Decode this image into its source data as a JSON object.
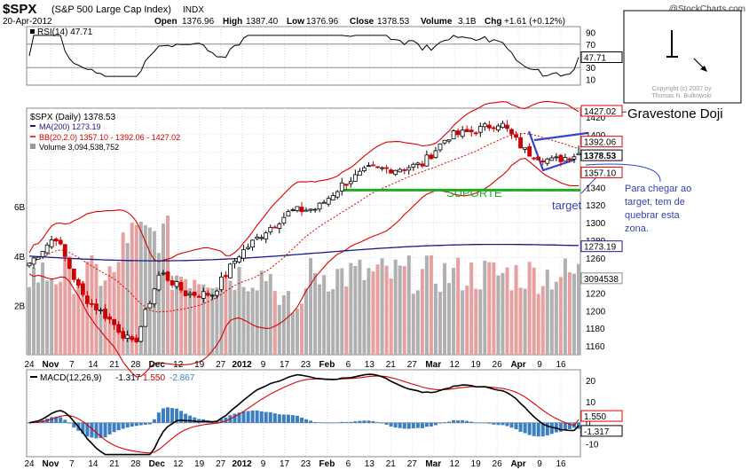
{
  "header": {
    "ticker": "$SPX",
    "name": "(S&P 500 Large Cap Index)",
    "exchange": "INDX",
    "brand": "@StockCharts.com",
    "date": "20-Apr-2012",
    "open_label": "Open",
    "open": "1376.96",
    "high_label": "High",
    "high": "1387.40",
    "low_label": "Low",
    "low": "1376.96",
    "close_label": "Close",
    "close": "1378.53",
    "volume_label": "Volume",
    "volume": "3.1B",
    "chg_label": "Chg",
    "chg": "+1.61 (+0.12%)"
  },
  "rsi_panel": {
    "legend": "RSI(14) 47.71",
    "last_value": "47.71",
    "levels": [
      "90",
      "70",
      "50",
      "30",
      "10"
    ]
  },
  "price_panel": {
    "legend_main": "$SPX (Daily) 1378.53",
    "legend_ma": "MA(200) 1273.19",
    "legend_bb": "BB(20,2.0) 1357.10 - 1392.06 - 1427.02",
    "legend_vol": "Volume 3,094,538,752",
    "price_ticks": [
      "1420",
      "1400",
      "1380",
      "1360",
      "1340",
      "1320",
      "1300",
      "1280",
      "1260",
      "1240",
      "1220",
      "1200",
      "1180",
      "1160"
    ],
    "volume_ticks": [
      "6B",
      "4B",
      "2B"
    ],
    "value_boxes": [
      "1427.02",
      "1392.06",
      "1378.53",
      "1357.10",
      "1273.19",
      "3094538"
    ]
  },
  "macd_panel": {
    "legend_title": "MACD(12,26,9)",
    "macd": "-1.317",
    "signal": "1.550",
    "histogram": "-2.867",
    "ticks": [
      "20",
      "10",
      "0",
      "-10"
    ],
    "value_boxes": [
      "1.550",
      "-1.317"
    ]
  },
  "x_axis": {
    "labels": [
      "24",
      "Nov",
      "7",
      "14",
      "21",
      "28",
      "Dec",
      "12",
      "19",
      "27",
      "2012",
      "9",
      "17",
      "23",
      "Feb",
      "6",
      "13",
      "21",
      "27",
      "Mar",
      "12",
      "19",
      "26",
      "Apr",
      "9",
      "16"
    ]
  },
  "annotations": {
    "pattern_label": "Gravestone Doji",
    "support_label": "SUPORTE",
    "target_label": "target",
    "note_lines": [
      "Para chegar ao",
      "target, tem de",
      "quebrar esta",
      "zona."
    ],
    "inset_copyright_1": "Copyright (c) 2007 by",
    "inset_copyright_2": "Thomas N. Bulkowski"
  },
  "colors": {
    "up": "#000000",
    "down": "#cc0000",
    "bb": "#dd0000",
    "ma": "#1a1a8c",
    "support": "#22aa22",
    "wedge": "#3344cc",
    "vol_up": "#b0b0b0",
    "vol_down": "#e6a0a0",
    "hist": "#3a7fc1",
    "note": "#3344aa",
    "grid": "#dddddd"
  },
  "chart_data": {
    "type": "candlestick",
    "title": "$SPX (Daily) 1378.53",
    "date_range": [
      "2011-10-24",
      "2012-04-20"
    ],
    "ylim": [
      1150,
      1430
    ],
    "approx_closes_weekly": [
      1254,
      1285,
      1218,
      1192,
      1160,
      1244,
      1219,
      1219,
      1263,
      1290,
      1313,
      1316,
      1344,
      1361,
      1361,
      1366,
      1398,
      1404,
      1414,
      1380,
      1370,
      1378.53
    ],
    "last_bar": {
      "open": 1376.96,
      "high": 1387.4,
      "low": 1376.96,
      "close": 1378.53
    },
    "ma200_last": 1273.19,
    "bb_last": {
      "lower": 1357.1,
      "middle": 1392.06,
      "upper": 1427.02
    },
    "support_level": 1337,
    "rsi_last": 47.71,
    "rsi_ylim": [
      0,
      100
    ],
    "macd_last": {
      "macd": -1.317,
      "signal": 1.55,
      "histogram": -2.867
    },
    "macd_ylim": [
      -16,
      25
    ],
    "volume_last": 3094538752,
    "volume_ylim": [
      0,
      8
    ]
  }
}
